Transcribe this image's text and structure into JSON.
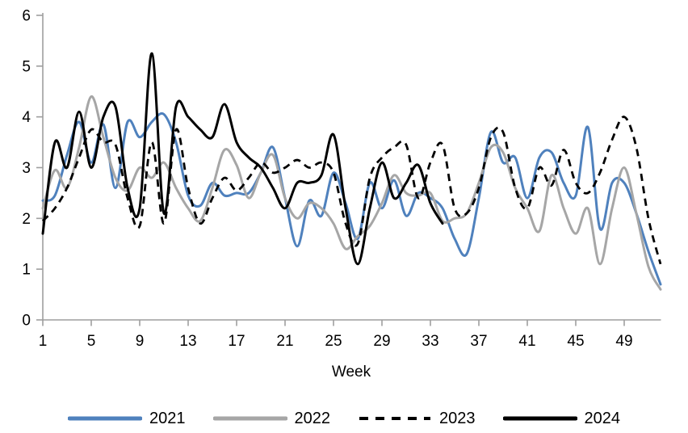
{
  "chart_data": {
    "type": "line",
    "title": "",
    "xlabel": "Week",
    "ylabel": "",
    "x_range": [
      1,
      52
    ],
    "ylim": [
      0,
      6
    ],
    "y_ticks": [
      0,
      1,
      2,
      3,
      4,
      5,
      6
    ],
    "x_ticks": [
      1,
      5,
      9,
      13,
      17,
      21,
      25,
      29,
      33,
      37,
      41,
      45,
      49
    ],
    "grid": false,
    "legend_position": "bottom",
    "axis_color": "#9e9e9e",
    "series": [
      {
        "name": "2021",
        "color": "#4f81bd",
        "style": "solid",
        "start_week": 1,
        "values": [
          2.35,
          2.45,
          3.25,
          3.9,
          3.1,
          3.85,
          2.6,
          3.9,
          3.6,
          3.9,
          4.05,
          3.5,
          2.45,
          2.25,
          2.7,
          2.45,
          2.5,
          2.5,
          2.9,
          3.4,
          2.4,
          1.45,
          2.35,
          2.05,
          2.9,
          2.3,
          1.6,
          2.7,
          2.2,
          2.75,
          2.05,
          2.5,
          2.4,
          2.2,
          1.6,
          1.3,
          2.4,
          3.7,
          3.1,
          3.2,
          2.4,
          3.2,
          3.3,
          2.7,
          2.45,
          3.8,
          1.8,
          2.7,
          2.7,
          2.1,
          1.35,
          0.7
        ]
      },
      {
        "name": "2022",
        "color": "#a6a6a6",
        "style": "solid",
        "start_week": 1,
        "values": [
          2.2,
          2.95,
          2.6,
          3.4,
          4.4,
          3.6,
          2.8,
          2.55,
          3.0,
          2.8,
          3.1,
          2.6,
          2.2,
          1.95,
          2.6,
          3.35,
          3.05,
          2.4,
          2.9,
          3.25,
          2.4,
          2.0,
          2.3,
          2.2,
          1.9,
          1.4,
          1.65,
          1.85,
          2.3,
          2.85,
          2.5,
          2.45,
          2.5,
          1.95,
          2.0,
          2.1,
          2.7,
          3.4,
          3.3,
          2.6,
          2.2,
          1.75,
          2.85,
          2.2,
          1.7,
          2.2,
          1.1,
          2.2,
          3.0,
          2.1,
          1.05,
          0.6
        ]
      },
      {
        "name": "2023",
        "color": "#000000",
        "style": "dashed",
        "start_week": 1,
        "values": [
          1.95,
          2.2,
          2.6,
          3.2,
          3.75,
          3.5,
          3.45,
          2.4,
          1.85,
          3.5,
          1.9,
          3.75,
          2.6,
          1.9,
          2.4,
          2.8,
          2.55,
          2.8,
          3.1,
          2.9,
          3.0,
          3.15,
          3.0,
          3.1,
          2.9,
          1.9,
          1.5,
          2.8,
          3.2,
          3.4,
          3.45,
          2.4,
          3.1,
          3.45,
          2.2,
          2.1,
          2.6,
          3.6,
          3.7,
          2.6,
          2.2,
          3.0,
          2.65,
          3.35,
          2.7,
          2.5,
          2.9,
          3.55,
          4.0,
          3.4,
          2.0,
          1.1
        ]
      },
      {
        "name": "2024",
        "color": "#000000",
        "style": "solid",
        "start_week": 1,
        "values": [
          1.7,
          3.5,
          3.0,
          4.1,
          3.0,
          4.0,
          4.2,
          2.6,
          2.2,
          5.25,
          2.1,
          4.2,
          4.0,
          3.75,
          3.6,
          4.25,
          3.5,
          3.2,
          3.0,
          2.6,
          2.2,
          2.7,
          2.7,
          2.85,
          3.65,
          2.2,
          1.1,
          2.2,
          3.1,
          2.4,
          2.7,
          3.05,
          2.3,
          1.9
        ]
      }
    ]
  }
}
